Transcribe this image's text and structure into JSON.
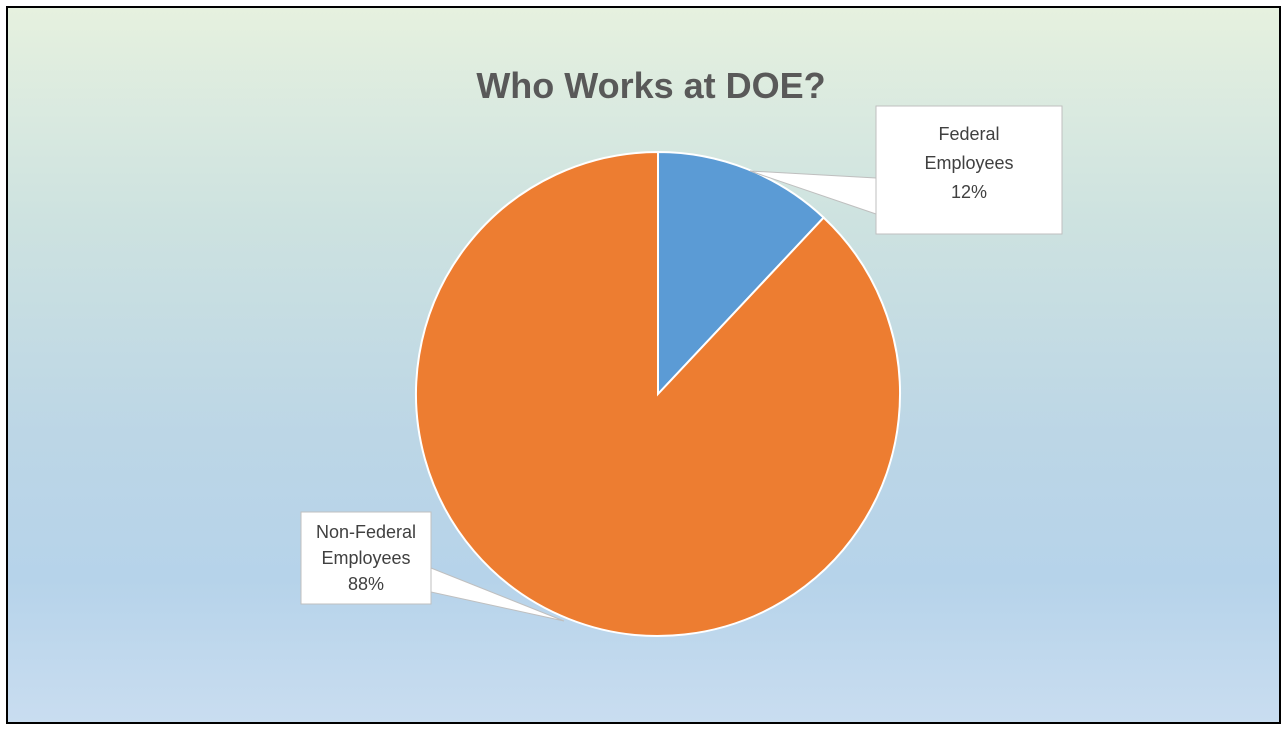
{
  "chart_data": {
    "type": "pie",
    "title": "Who Works at DOE?",
    "categories": [
      "Federal Employees",
      "Non-Federal Employees"
    ],
    "values": [
      12,
      88
    ],
    "data_labels": [
      {
        "lines": [
          "Federal",
          "Employees",
          "12%"
        ]
      },
      {
        "lines": [
          "Non-Federal",
          "Employees",
          "88%"
        ]
      }
    ],
    "colors": [
      "#5b9bd5",
      "#ed7d31"
    ],
    "start_angle": "12 o'clock",
    "direction": "clockwise",
    "legend": "none"
  }
}
